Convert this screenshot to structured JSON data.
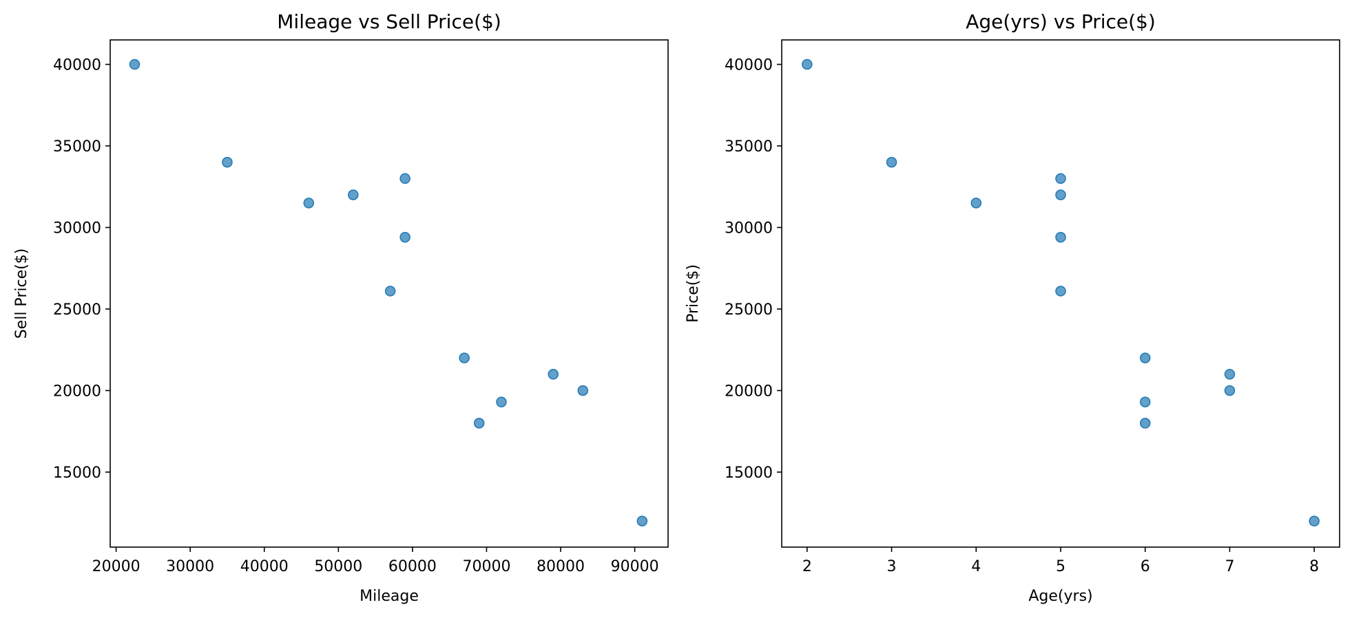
{
  "chart_data": [
    {
      "type": "scatter",
      "title": "Mileage vs Sell Price($)",
      "xlabel": "Mileage",
      "ylabel": "Sell Price($)",
      "xlim": [
        19200,
        94500
      ],
      "ylim": [
        10400,
        41500
      ],
      "xticks": [
        20000,
        30000,
        40000,
        50000,
        60000,
        70000,
        80000,
        90000
      ],
      "yticks": [
        15000,
        20000,
        25000,
        30000,
        35000,
        40000
      ],
      "grid": false,
      "color": "#1f77b4",
      "points": [
        {
          "x": 22500,
          "y": 40000
        },
        {
          "x": 35000,
          "y": 34000
        },
        {
          "x": 46000,
          "y": 31500
        },
        {
          "x": 52000,
          "y": 32000
        },
        {
          "x": 59000,
          "y": 33000
        },
        {
          "x": 59000,
          "y": 29400
        },
        {
          "x": 57000,
          "y": 26100
        },
        {
          "x": 67000,
          "y": 22000
        },
        {
          "x": 79000,
          "y": 21000
        },
        {
          "x": 83000,
          "y": 20000
        },
        {
          "x": 72000,
          "y": 19300
        },
        {
          "x": 69000,
          "y": 18000
        },
        {
          "x": 91000,
          "y": 12000
        }
      ]
    },
    {
      "type": "scatter",
      "title": "Age(yrs) vs Price($)",
      "xlabel": "Age(yrs)",
      "ylabel": "Price($)",
      "xlim": [
        1.7,
        8.3
      ],
      "ylim": [
        10400,
        41500
      ],
      "xticks": [
        2,
        3,
        4,
        5,
        6,
        7,
        8
      ],
      "yticks": [
        15000,
        20000,
        25000,
        30000,
        35000,
        40000
      ],
      "grid": false,
      "color": "#1f77b4",
      "points": [
        {
          "x": 2,
          "y": 40000
        },
        {
          "x": 3,
          "y": 34000
        },
        {
          "x": 4,
          "y": 31500
        },
        {
          "x": 5,
          "y": 33000
        },
        {
          "x": 5,
          "y": 32000
        },
        {
          "x": 5,
          "y": 29400
        },
        {
          "x": 5,
          "y": 26100
        },
        {
          "x": 6,
          "y": 22000
        },
        {
          "x": 6,
          "y": 19300
        },
        {
          "x": 6,
          "y": 18000
        },
        {
          "x": 7,
          "y": 21000
        },
        {
          "x": 7,
          "y": 20000
        },
        {
          "x": 8,
          "y": 12000
        }
      ]
    }
  ]
}
